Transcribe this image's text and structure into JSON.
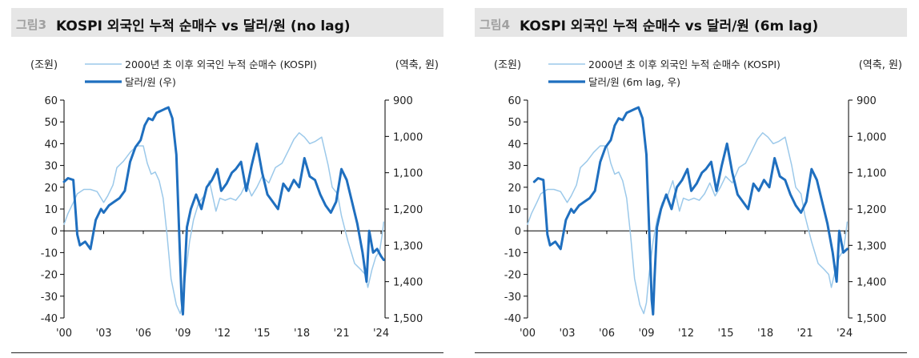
{
  "colors": {
    "kospi": "#9cc9ea",
    "usd": "#1f6fbf",
    "axis": "#000000",
    "title_bg": "#e6e6e6"
  },
  "chart_data": [
    {
      "type": "line",
      "fig_label": "그림3",
      "title": "KOSPI 외국인 누적 순매수 vs 달러/원 (no lag)",
      "ylabel_left": "(조원)",
      "ylabel_right": "(역축, 원)",
      "ylim_left": [
        -40,
        60
      ],
      "ylim_right": [
        1500,
        900
      ],
      "right_axis_inverted": true,
      "xlim": [
        2000,
        2024.3
      ],
      "x_tick_labels": [
        "'00",
        "'03",
        "'06",
        "'09",
        "'12",
        "'15",
        "'18",
        "'21",
        "'24"
      ],
      "y_left_tick_labels": [
        "60",
        "50",
        "40",
        "30",
        "20",
        "10",
        "0",
        "-10",
        "-20",
        "-30",
        "-40"
      ],
      "y_right_tick_labels": [
        "900",
        "1,000",
        "1,100",
        "1,200",
        "1,300",
        "1,400",
        "1,500"
      ],
      "legend": [
        "2000년 초 이후 외국인 누적 순매수 (KOSPI)",
        "달러/원 (우)"
      ],
      "series": [
        {
          "name": "2000년 초 이후 외국인 누적 순매수 (KOSPI)",
          "axis": "left",
          "x": [
            2000,
            2000.3,
            2000.7,
            2001,
            2001.5,
            2002,
            2002.5,
            2003,
            2003.3,
            2003.7,
            2004,
            2004.5,
            2005,
            2005.5,
            2006,
            2006.3,
            2006.6,
            2006.9,
            2007.2,
            2007.5,
            2007.8,
            2008.1,
            2008.5,
            2008.8,
            2009,
            2009.2,
            2009.5,
            2009.8,
            2010.2,
            2010.6,
            2011,
            2011.5,
            2011.8,
            2012.2,
            2012.6,
            2013,
            2013.4,
            2013.8,
            2014.2,
            2014.6,
            2015,
            2015.5,
            2016,
            2016.5,
            2017,
            2017.4,
            2017.8,
            2018.2,
            2018.6,
            2019,
            2019.5,
            2020,
            2020.3,
            2020.7,
            2021,
            2021.5,
            2022,
            2022.5,
            2022.8,
            2023,
            2023.3,
            2023.6,
            2023.9,
            2024.1,
            2024.2
          ],
          "values": [
            3,
            8,
            13,
            17,
            19,
            19,
            18,
            13,
            16,
            21,
            29,
            32,
            36,
            39,
            39,
            31,
            26,
            27,
            23,
            15,
            -2,
            -22,
            -34,
            -38,
            -33,
            -20,
            -5,
            5,
            13,
            16,
            23,
            9,
            15,
            14,
            15,
            14,
            17,
            22,
            16,
            20,
            25,
            22,
            29,
            31,
            37,
            42,
            45,
            43,
            40,
            41,
            43,
            30,
            20,
            17,
            7,
            -5,
            -15,
            -18,
            -20,
            -26,
            -18,
            -12,
            -9,
            -1,
            4
          ]
        },
        {
          "name": "달러/원 (우)",
          "axis": "right",
          "x": [
            2000,
            2000.3,
            2000.7,
            2001,
            2001.2,
            2001.6,
            2002,
            2002.4,
            2002.8,
            2003,
            2003.4,
            2003.8,
            2004.2,
            2004.6,
            2005,
            2005.4,
            2005.8,
            2006.1,
            2006.4,
            2006.7,
            2007,
            2007.3,
            2007.6,
            2007.9,
            2008.2,
            2008.5,
            2008.8,
            2008.9,
            2009,
            2009.1,
            2009.3,
            2009.6,
            2010,
            2010.4,
            2010.8,
            2011.2,
            2011.6,
            2011.9,
            2012.3,
            2012.7,
            2013,
            2013.4,
            2013.8,
            2014.2,
            2014.6,
            2015,
            2015.4,
            2015.8,
            2016.2,
            2016.6,
            2017,
            2017.4,
            2017.8,
            2018.2,
            2018.6,
            2019,
            2019.4,
            2019.8,
            2020.2,
            2020.6,
            2021,
            2021.4,
            2021.8,
            2022.2,
            2022.6,
            2022.9,
            2023.1,
            2023.4,
            2023.7,
            2024,
            2024.2
          ],
          "values": [
            1125,
            1115,
            1120,
            1270,
            1300,
            1290,
            1310,
            1230,
            1200,
            1210,
            1190,
            1180,
            1170,
            1150,
            1070,
            1030,
            1010,
            970,
            950,
            955,
            935,
            930,
            925,
            920,
            950,
            1050,
            1350,
            1450,
            1490,
            1400,
            1250,
            1200,
            1160,
            1200,
            1140,
            1120,
            1090,
            1150,
            1130,
            1100,
            1090,
            1070,
            1150,
            1080,
            1020,
            1100,
            1160,
            1180,
            1200,
            1130,
            1150,
            1120,
            1140,
            1060,
            1110,
            1120,
            1160,
            1190,
            1210,
            1180,
            1090,
            1120,
            1180,
            1240,
            1320,
            1400,
            1260,
            1320,
            1310,
            1330,
            1340
          ]
        }
      ]
    },
    {
      "type": "line",
      "fig_label": "그림4",
      "title": "KOSPI 외국인 누적 순매수 vs 달러/원 (6m lag)",
      "ylabel_left": "(조원)",
      "ylabel_right": "(역축, 원)",
      "ylim_left": [
        -40,
        60
      ],
      "ylim_right": [
        1500,
        900
      ],
      "right_axis_inverted": true,
      "xlim": [
        2000,
        2024.3
      ],
      "x_tick_labels": [
        "'00",
        "'03",
        "'06",
        "'09",
        "'12",
        "'15",
        "'18",
        "'21",
        "'24"
      ],
      "y_left_tick_labels": [
        "60",
        "50",
        "40",
        "30",
        "20",
        "10",
        "0",
        "-10",
        "-20",
        "-30",
        "-40"
      ],
      "y_right_tick_labels": [
        "900",
        "1,000",
        "1,100",
        "1,200",
        "1,300",
        "1,400",
        "1,500"
      ],
      "legend": [
        "2000년 초 이후 외국인 누적 순매수 (KOSPI)",
        "달러/원 (6m lag, 우)"
      ],
      "series": [
        {
          "name": "2000년 초 이후 외국인 누적 순매수 (KOSPI)",
          "axis": "left",
          "x": [
            2000,
            2000.3,
            2000.7,
            2001,
            2001.5,
            2002,
            2002.5,
            2003,
            2003.3,
            2003.7,
            2004,
            2004.5,
            2005,
            2005.5,
            2006,
            2006.3,
            2006.6,
            2006.9,
            2007.2,
            2007.5,
            2007.8,
            2008.1,
            2008.5,
            2008.8,
            2009,
            2009.2,
            2009.5,
            2009.8,
            2010.2,
            2010.6,
            2011,
            2011.5,
            2011.8,
            2012.2,
            2012.6,
            2013,
            2013.4,
            2013.8,
            2014.2,
            2014.6,
            2015,
            2015.5,
            2016,
            2016.5,
            2017,
            2017.4,
            2017.8,
            2018.2,
            2018.6,
            2019,
            2019.5,
            2020,
            2020.3,
            2020.7,
            2021,
            2021.5,
            2022,
            2022.5,
            2022.8,
            2023,
            2023.3,
            2023.6,
            2023.9,
            2024.1,
            2024.2
          ],
          "values": [
            3,
            8,
            13,
            17,
            19,
            19,
            18,
            13,
            16,
            21,
            29,
            32,
            36,
            39,
            39,
            31,
            26,
            27,
            23,
            15,
            -2,
            -22,
            -34,
            -38,
            -33,
            -20,
            -5,
            5,
            13,
            16,
            23,
            9,
            15,
            14,
            15,
            14,
            17,
            22,
            16,
            20,
            25,
            22,
            29,
            31,
            37,
            42,
            45,
            43,
            40,
            41,
            43,
            30,
            20,
            17,
            7,
            -5,
            -15,
            -18,
            -20,
            -26,
            -18,
            -12,
            -9,
            -1,
            4
          ]
        },
        {
          "name": "달러/원 (6m lag, 우)",
          "axis": "right",
          "x": [
            2000.5,
            2000.8,
            2001.2,
            2001.5,
            2001.7,
            2002.1,
            2002.5,
            2002.9,
            2003.3,
            2003.5,
            2003.9,
            2004.3,
            2004.7,
            2005.1,
            2005.5,
            2005.9,
            2006.3,
            2006.6,
            2006.9,
            2007.2,
            2007.5,
            2007.8,
            2008.1,
            2008.4,
            2008.7,
            2009,
            2009.3,
            2009.4,
            2009.5,
            2009.6,
            2009.8,
            2010.1,
            2010.5,
            2010.9,
            2011.3,
            2011.7,
            2012.1,
            2012.4,
            2012.8,
            2013.2,
            2013.5,
            2013.9,
            2014.3,
            2014.7,
            2015.1,
            2015.5,
            2015.9,
            2016.3,
            2016.7,
            2017.1,
            2017.5,
            2017.9,
            2018.3,
            2018.7,
            2019.1,
            2019.5,
            2019.9,
            2020.3,
            2020.7,
            2021.1,
            2021.5,
            2021.9,
            2022.3,
            2022.7,
            2023.1,
            2023.4,
            2023.6,
            2023.9,
            2024.2
          ],
          "values": [
            1125,
            1115,
            1120,
            1270,
            1300,
            1290,
            1310,
            1230,
            1200,
            1210,
            1190,
            1180,
            1170,
            1150,
            1070,
            1030,
            1010,
            970,
            950,
            955,
            935,
            930,
            925,
            920,
            950,
            1050,
            1350,
            1450,
            1490,
            1400,
            1250,
            1200,
            1160,
            1200,
            1140,
            1120,
            1090,
            1150,
            1130,
            1100,
            1090,
            1070,
            1150,
            1080,
            1020,
            1100,
            1160,
            1180,
            1200,
            1130,
            1150,
            1120,
            1140,
            1060,
            1110,
            1120,
            1160,
            1190,
            1210,
            1180,
            1090,
            1120,
            1180,
            1240,
            1320,
            1400,
            1260,
            1320,
            1310
          ]
        }
      ]
    }
  ]
}
